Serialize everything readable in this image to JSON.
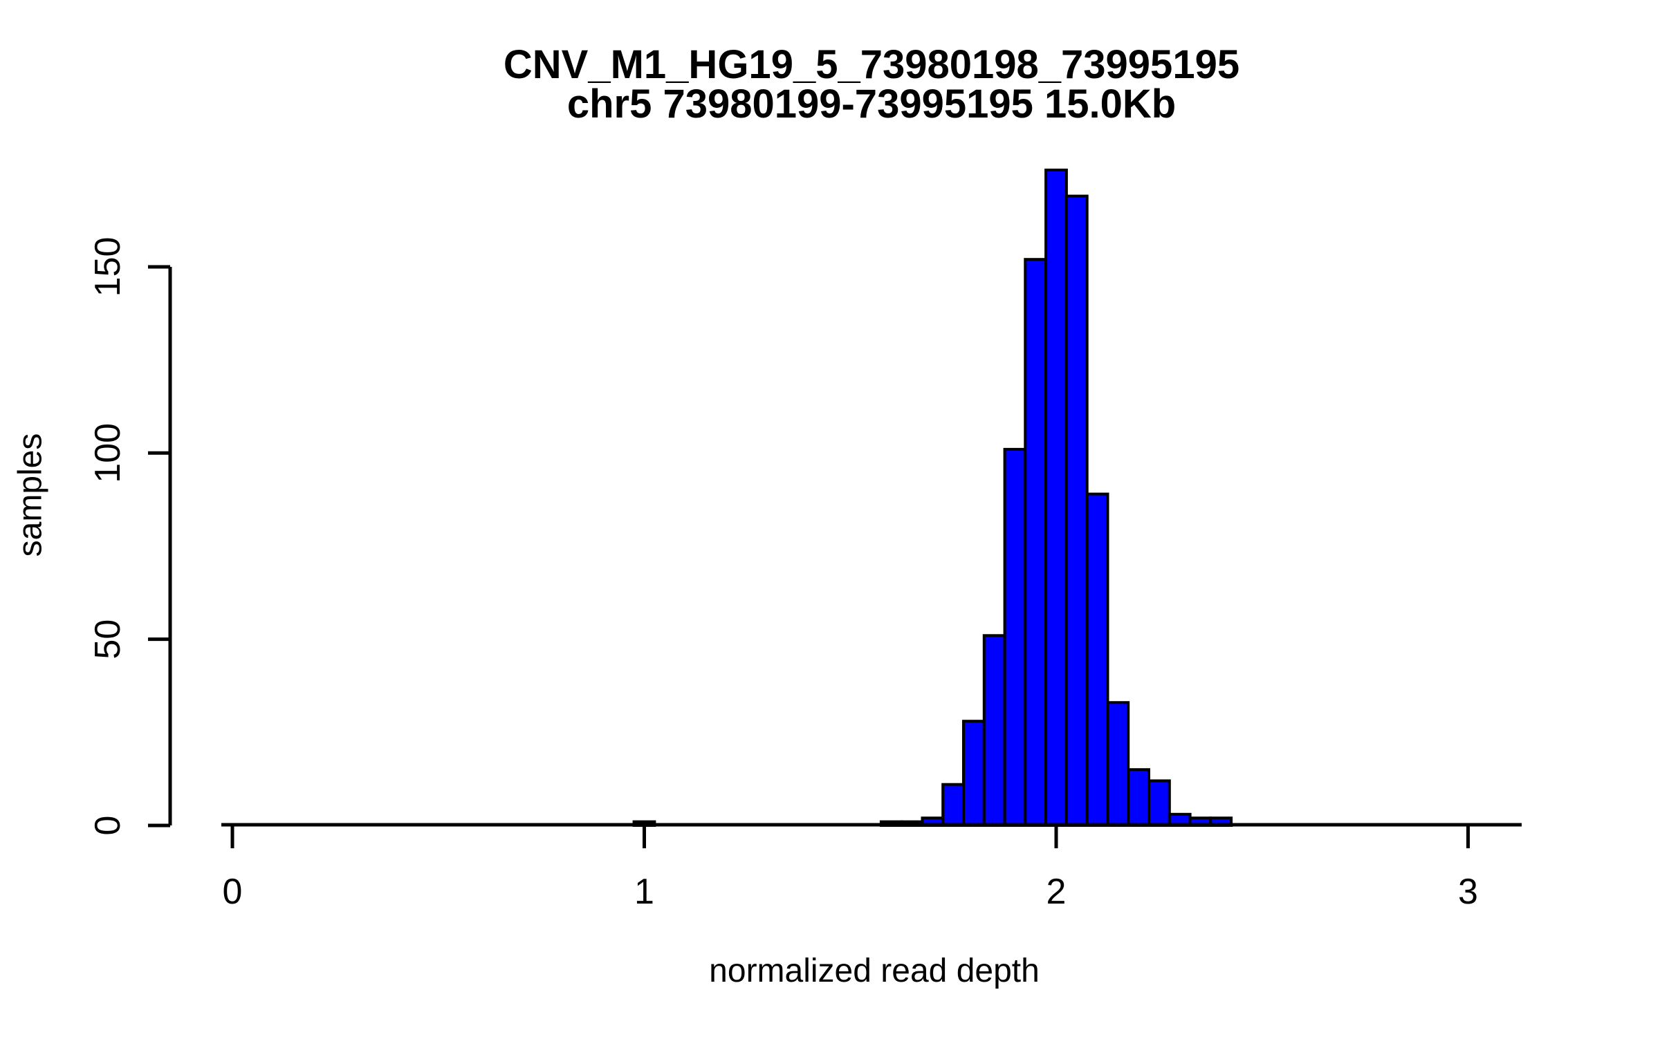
{
  "figure": {
    "background": "#FFFFFF",
    "text_color": "#000000"
  },
  "chart_data": {
    "type": "bar",
    "subtype": "histogram",
    "title": "CNV_M1_HG19_5_73980198_73995195",
    "subtitle": "chr5 73980199-73995195 15.0Kb",
    "xlabel": "normalized read depth",
    "ylabel": "samples",
    "x_ticks": [
      0,
      1,
      2,
      3
    ],
    "y_ticks": [
      0,
      50,
      100,
      150
    ],
    "xlim": [
      -0.03,
      3.13
    ],
    "ylim": [
      0,
      176
    ],
    "grid": false,
    "legend": false,
    "bin_width": 0.05,
    "bar_fill": "#0000FF",
    "bar_border": "#000000",
    "highlight_fill": "#FFA500",
    "bins": [
      {
        "center": 1.0,
        "count": 1,
        "highlight": true
      },
      {
        "center": 1.6,
        "count": 1
      },
      {
        "center": 1.65,
        "count": 1
      },
      {
        "center": 1.7,
        "count": 2
      },
      {
        "center": 1.75,
        "count": 11
      },
      {
        "center": 1.8,
        "count": 28
      },
      {
        "center": 1.85,
        "count": 51
      },
      {
        "center": 1.9,
        "count": 101
      },
      {
        "center": 1.95,
        "count": 152
      },
      {
        "center": 2.0,
        "count": 176
      },
      {
        "center": 2.05,
        "count": 169
      },
      {
        "center": 2.1,
        "count": 89
      },
      {
        "center": 2.15,
        "count": 33
      },
      {
        "center": 2.2,
        "count": 15
      },
      {
        "center": 2.25,
        "count": 12
      },
      {
        "center": 2.3,
        "count": 3
      },
      {
        "center": 2.35,
        "count": 2
      },
      {
        "center": 2.4,
        "count": 2
      }
    ]
  }
}
